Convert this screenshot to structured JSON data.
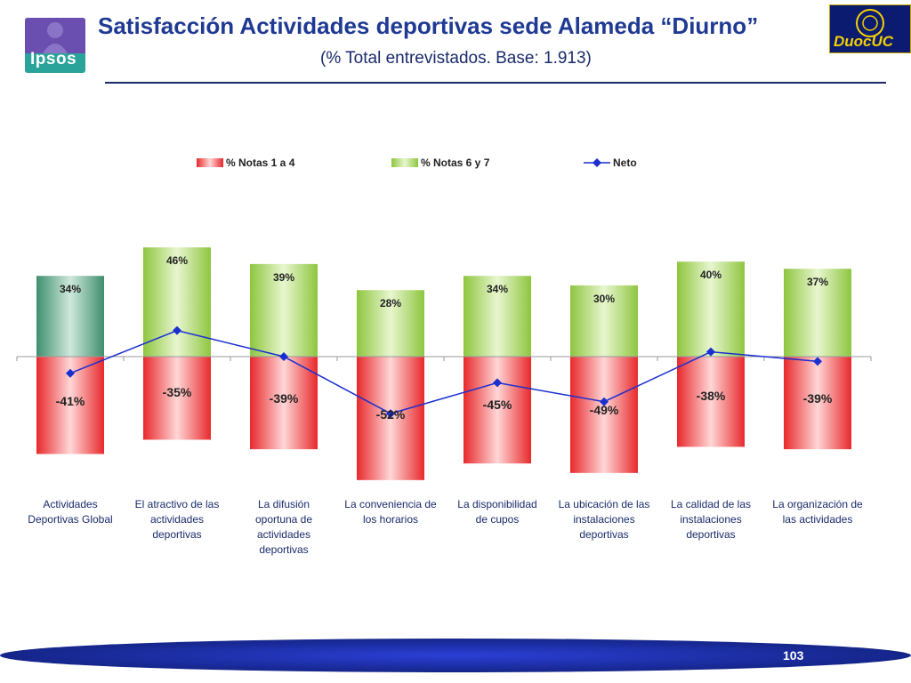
{
  "header": {
    "title": "Satisfacción Actividades deportivas sede Alameda “Diurno”",
    "subtitle": "(% Total entrevistados. Base: 1.913)",
    "logo_left": "Ipsos",
    "logo_right": "DuocUC"
  },
  "footer": {
    "page_number": "103"
  },
  "colors": {
    "negative": "#e8292c",
    "positive": "#8ec63f",
    "first_positive": "#3f8f6e",
    "neto_line": "#1a2fd0",
    "title": "#1f3a93"
  },
  "chart_data": {
    "type": "bar",
    "title": "",
    "xlabel": "",
    "ylabel": "",
    "ylim": [
      -60,
      60
    ],
    "grid": false,
    "legend_position": "top",
    "categories": [
      [
        "Actividades",
        "Deportivas Global"
      ],
      [
        "El atractivo de las",
        "actividades",
        "deportivas"
      ],
      [
        "La difusión",
        "oportuna de",
        "actividades",
        "deportivas"
      ],
      [
        "La conveniencia de",
        "los horarios"
      ],
      [
        "La disponibilidad",
        "de cupos"
      ],
      [
        "La ubicación de las",
        "instalaciones",
        "deportivas"
      ],
      [
        "La calidad de las",
        "instalaciones",
        "deportivas"
      ],
      [
        "La organización de",
        "las actividades"
      ]
    ],
    "series": [
      {
        "name": "% Notas 1 a 4",
        "kind": "bar",
        "values": [
          -41,
          -35,
          -39,
          -52,
          -45,
          -49,
          -38,
          -39
        ],
        "labels": [
          "-41%",
          "-35%",
          "-39%",
          "-52%",
          "-45%",
          "-49%",
          "-38%",
          "-39%"
        ]
      },
      {
        "name": "% Notas 6 y 7",
        "kind": "bar",
        "values": [
          34,
          46,
          39,
          28,
          34,
          30,
          40,
          37
        ],
        "labels": [
          "34%",
          "46%",
          "39%",
          "28%",
          "34%",
          "30%",
          "40%",
          "37%"
        ]
      },
      {
        "name": "Neto",
        "kind": "line",
        "values": [
          -7,
          11,
          0,
          -24,
          -11,
          -19,
          2,
          -2
        ]
      }
    ]
  }
}
